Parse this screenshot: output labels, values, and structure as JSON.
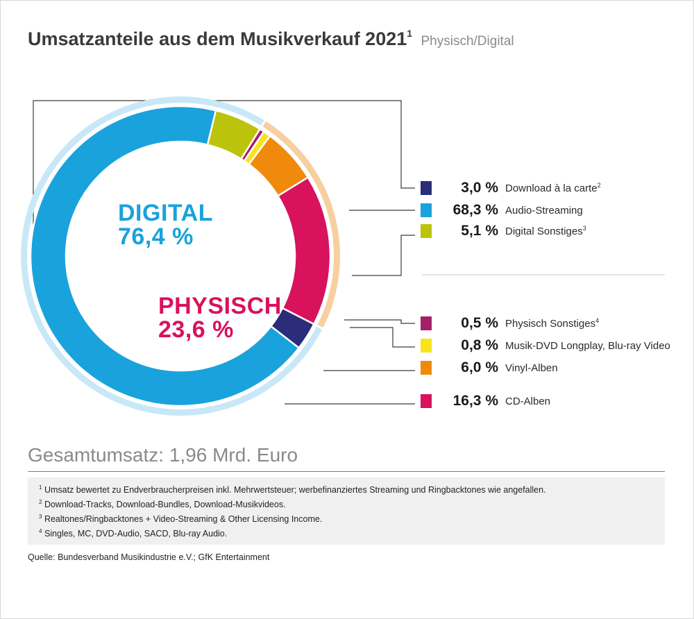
{
  "title": "Umsatzanteile aus dem Musikverkauf 2021",
  "title_sup": "1",
  "subtitle": "Physisch/Digital",
  "chart_data": {
    "type": "pie",
    "donut": true,
    "groups": [
      {
        "name": "DIGITAL",
        "value": "76,4 %",
        "color": "#1aa2dc",
        "ring_color": "#c8e8f8"
      },
      {
        "name": "PHYSISCH",
        "value": "23,6 %",
        "color": "#d8125d",
        "ring_color": "#f8cfa0"
      }
    ],
    "series": [
      {
        "label": "Download à la carte",
        "sup": "2",
        "value": 3.0,
        "display": "3,0 %",
        "color": "#2b2c7a",
        "group": "DIGITAL"
      },
      {
        "label": "Audio-Streaming",
        "sup": "",
        "value": 68.3,
        "display": "68,3 %",
        "color": "#1aa2dc",
        "group": "DIGITAL"
      },
      {
        "label": "Digital Sonstiges",
        "sup": "3",
        "value": 5.1,
        "display": "5,1 %",
        "color": "#bcc30b",
        "group": "DIGITAL"
      },
      {
        "label": "Physisch Sonstiges",
        "sup": "4",
        "value": 0.5,
        "display": "0,5 %",
        "color": "#a32068",
        "group": "PHYSISCH"
      },
      {
        "label": "Musik-DVD Longplay, Blu-ray Video",
        "sup": "",
        "value": 0.8,
        "display": "0,8 %",
        "color": "#f7e41b",
        "group": "PHYSISCH"
      },
      {
        "label": "Vinyl-Alben",
        "sup": "",
        "value": 6.0,
        "display": "6,0 %",
        "color": "#ef8a0d",
        "group": "PHYSISCH"
      },
      {
        "label": "CD-Alben",
        "sup": "",
        "value": 16.3,
        "display": "16,3 %",
        "color": "#d8125d",
        "group": "PHYSISCH"
      }
    ]
  },
  "total": "Gesamtumsatz: 1,96 Mrd. Euro",
  "footnotes": [
    {
      "num": "1",
      "text": "Umsatz bewertet zu Endverbraucherpreisen inkl. Mehrwertsteuer; werbefinanziertes Streaming und Ringbacktones wie angefallen."
    },
    {
      "num": "2",
      "text": "Download-Tracks, Download-Bundles, Download-Musikvideos."
    },
    {
      "num": "3",
      "text": "Realtones/Ringbacktones + Video-Streaming & Other Licensing Income."
    },
    {
      "num": "4",
      "text": "Singles, MC, DVD-Audio, SACD, Blu-ray Audio."
    }
  ],
  "source": "Quelle: Bundesverband Musikindustrie e.V.; GfK Entertainment"
}
